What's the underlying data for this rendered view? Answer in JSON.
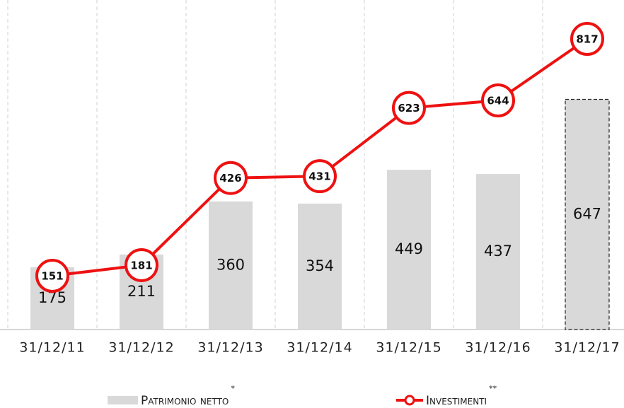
{
  "chart_data": {
    "type": "bar_line",
    "categories": [
      "31/12/11",
      "31/12/12",
      "31/12/13",
      "31/12/14",
      "31/12/15",
      "31/12/16",
      "31/12/17"
    ],
    "series": [
      {
        "name": "Patrimonio netto",
        "note": "*",
        "type": "bar",
        "color": "#d9d9d9",
        "values": [
          175,
          211,
          360,
          354,
          449,
          437,
          647
        ],
        "dashed": [
          false,
          false,
          false,
          false,
          false,
          false,
          true
        ]
      },
      {
        "name": "Investimenti",
        "note": "**",
        "type": "line",
        "color": "#ee1111",
        "values": [
          151,
          181,
          426,
          431,
          623,
          644,
          817
        ]
      }
    ],
    "grid": "vertical-dashed",
    "legend": "bottom"
  }
}
